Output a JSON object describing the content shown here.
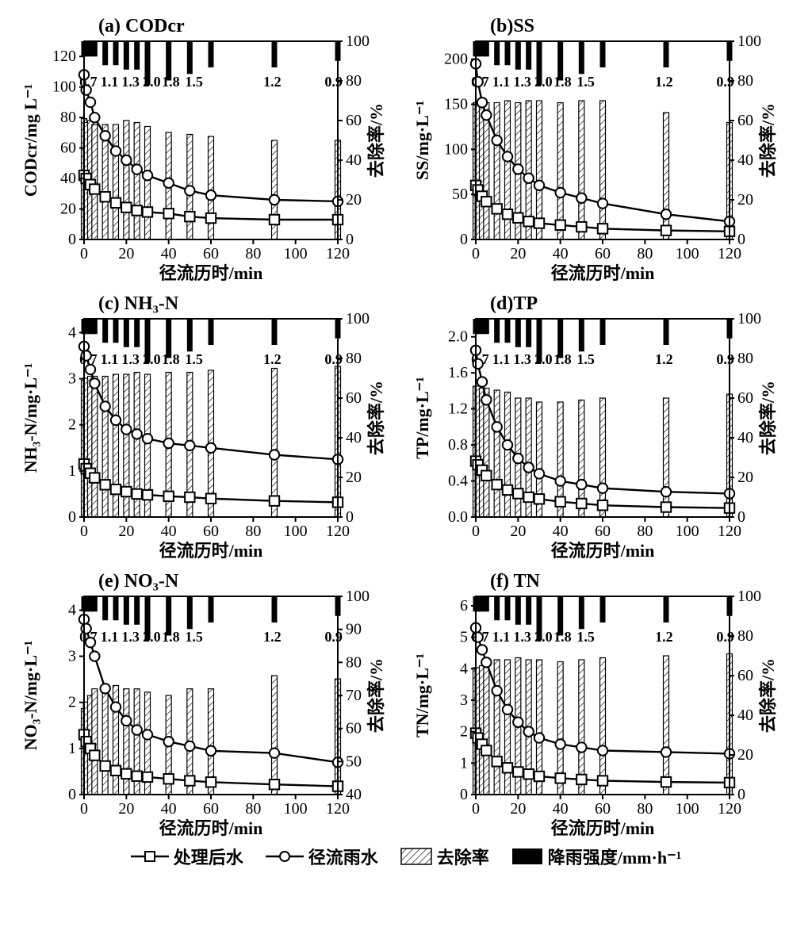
{
  "figure": {
    "background_color": "#ffffff",
    "stroke_color": "#000000",
    "bar_fill": "#ffffff",
    "hatch_color": "#000000",
    "rain_bar_color": "#000000",
    "font_family": "Times New Roman, SimSun, serif",
    "title_fontsize": 24,
    "axis_label_fontsize": 22,
    "tick_fontsize": 20,
    "rain_label_fontsize": 18,
    "line_width": 2.4,
    "marker_size": 6.2
  },
  "rain": {
    "x": [
      0,
      1,
      3,
      5,
      10,
      15,
      20,
      25,
      30,
      40,
      50,
      60,
      90,
      120
    ],
    "values": [
      0.7,
      0.7,
      0.7,
      0.7,
      1.1,
      1.1,
      1.3,
      1.3,
      2.0,
      1.8,
      1.5,
      1.2,
      1.2,
      0.9
    ],
    "unit": "mm·h⁻¹",
    "labels": [
      {
        "x": 2,
        "text": "0.7"
      },
      {
        "x": 12,
        "text": "1.1"
      },
      {
        "x": 22,
        "text": "1.3"
      },
      {
        "x": 32,
        "text": "2.0"
      },
      {
        "x": 41,
        "text": "1.8"
      },
      {
        "x": 52,
        "text": "1.5"
      },
      {
        "x": 89,
        "text": "1.2"
      },
      {
        "x": 118,
        "text": "0.9"
      }
    ]
  },
  "xaxis": {
    "label": "径流历时/min",
    "lim": [
      0,
      120
    ],
    "tick_step": 20
  },
  "right_axis": {
    "label": "去除率/%"
  },
  "panels": [
    {
      "id": "a",
      "title": "(a) CODcr",
      "ylabel": "CODcr/mg L⁻¹",
      "ylim": [
        0,
        130
      ],
      "ytick_step": 20,
      "rlim": [
        0,
        100
      ],
      "rtick_step": 20,
      "x": [
        0,
        1,
        3,
        5,
        10,
        15,
        20,
        25,
        30,
        40,
        50,
        60,
        90,
        120
      ],
      "runoff": [
        108,
        98,
        90,
        80,
        68,
        58,
        52,
        46,
        42,
        37,
        32,
        29,
        26,
        25
      ],
      "treated": [
        42,
        40,
        36,
        33,
        28,
        24,
        21,
        19,
        18,
        17,
        15,
        14,
        13,
        13
      ],
      "removal": [
        61,
        59,
        60,
        58,
        58,
        58,
        60,
        59,
        57,
        54,
        53,
        52,
        50,
        50
      ]
    },
    {
      "id": "b",
      "title": "(b)SS",
      "ylabel": "SS/mg·L⁻¹",
      "ylim": [
        0,
        220
      ],
      "ytick_step": 50,
      "rlim": [
        0,
        100
      ],
      "rtick_step": 20,
      "x": [
        0,
        1,
        3,
        5,
        10,
        15,
        20,
        25,
        30,
        40,
        50,
        60,
        90,
        120
      ],
      "runoff": [
        195,
        175,
        152,
        138,
        110,
        92,
        78,
        68,
        60,
        52,
        46,
        40,
        28,
        20
      ],
      "treated": [
        60,
        55,
        48,
        42,
        34,
        28,
        24,
        20,
        18,
        16,
        14,
        12,
        10,
        9
      ],
      "removal": [
        69,
        68,
        68,
        69,
        69,
        70,
        69,
        70,
        70,
        69,
        70,
        70,
        64,
        59
      ]
    },
    {
      "id": "c",
      "title": "(c) NH₃-N",
      "ylabel": "NH₃-N/mg·L⁻¹",
      "ylim": [
        0,
        4.3
      ],
      "ytick_step": 1,
      "rlim": [
        0,
        100
      ],
      "rtick_step": 20,
      "x": [
        0,
        1,
        3,
        5,
        10,
        15,
        20,
        25,
        30,
        40,
        50,
        60,
        90,
        120
      ],
      "runoff": [
        3.7,
        3.5,
        3.2,
        2.9,
        2.4,
        2.1,
        1.9,
        1.8,
        1.7,
        1.6,
        1.55,
        1.5,
        1.35,
        1.25
      ],
      "treated": [
        1.15,
        1.05,
        0.95,
        0.85,
        0.7,
        0.6,
        0.55,
        0.5,
        0.48,
        0.45,
        0.43,
        0.4,
        0.35,
        0.32
      ],
      "removal": [
        69,
        70,
        71,
        71,
        71,
        72,
        72,
        73,
        72,
        73,
        73,
        74,
        75,
        76
      ]
    },
    {
      "id": "d",
      "title": "(d)TP",
      "ylabel": "TP/mg·L⁻¹",
      "ylim": [
        0.0,
        2.2
      ],
      "ytick_step": 0.4,
      "rlim": [
        0,
        100
      ],
      "rtick_step": 20,
      "x": [
        0,
        1,
        3,
        5,
        10,
        15,
        20,
        25,
        30,
        40,
        50,
        60,
        90,
        120
      ],
      "runoff": [
        1.85,
        1.7,
        1.5,
        1.3,
        1.0,
        0.8,
        0.65,
        0.55,
        0.48,
        0.4,
        0.36,
        0.32,
        0.28,
        0.26
      ],
      "treated": [
        0.62,
        0.58,
        0.52,
        0.46,
        0.36,
        0.3,
        0.26,
        0.22,
        0.2,
        0.17,
        0.15,
        0.13,
        0.11,
        0.1
      ],
      "removal": [
        66,
        66,
        65,
        65,
        64,
        63,
        60,
        60,
        58,
        58,
        59,
        60,
        60,
        62
      ]
    },
    {
      "id": "e",
      "title": "(e) NO₃-N",
      "ylabel": "NO₃-N/mg·L⁻¹",
      "ylim": [
        0,
        4.3
      ],
      "ytick_step": 1,
      "rlim": [
        40,
        100
      ],
      "rtick_step": 10,
      "x": [
        0,
        1,
        3,
        5,
        10,
        15,
        20,
        25,
        30,
        40,
        50,
        60,
        90,
        120
      ],
      "runoff": [
        3.8,
        3.6,
        3.3,
        3.0,
        2.3,
        1.9,
        1.6,
        1.4,
        1.3,
        1.15,
        1.05,
        0.95,
        0.9,
        0.7
      ],
      "treated": [
        1.3,
        1.15,
        1.0,
        0.85,
        0.62,
        0.52,
        0.45,
        0.4,
        0.38,
        0.34,
        0.3,
        0.27,
        0.22,
        0.18
      ],
      "removal": [
        66,
        68,
        70,
        72,
        73,
        73,
        72,
        72,
        71,
        70,
        72,
        72,
        76,
        75
      ]
    },
    {
      "id": "f",
      "title": "(f) TN",
      "ylabel": "TN/mg·L⁻¹",
      "ylim": [
        0,
        6.3
      ],
      "ytick_step": 1,
      "rlim": [
        0,
        100
      ],
      "rtick_step": 20,
      "x": [
        0,
        1,
        3,
        5,
        10,
        15,
        20,
        25,
        30,
        40,
        50,
        60,
        90,
        120
      ],
      "runoff": [
        5.3,
        5.0,
        4.6,
        4.2,
        3.3,
        2.7,
        2.3,
        2.0,
        1.8,
        1.6,
        1.5,
        1.4,
        1.35,
        1.3
      ],
      "treated": [
        1.95,
        1.8,
        1.6,
        1.4,
        1.05,
        0.85,
        0.72,
        0.65,
        0.58,
        0.52,
        0.48,
        0.44,
        0.4,
        0.38
      ],
      "removal": [
        64,
        64,
        65,
        67,
        68,
        68,
        69,
        68,
        68,
        67,
        68,
        69,
        70,
        71
      ]
    }
  ],
  "legend": {
    "treated": "处理后水",
    "runoff": "径流雨水",
    "removal": "去除率",
    "rain": "降雨强度/mm·h⁻¹"
  }
}
